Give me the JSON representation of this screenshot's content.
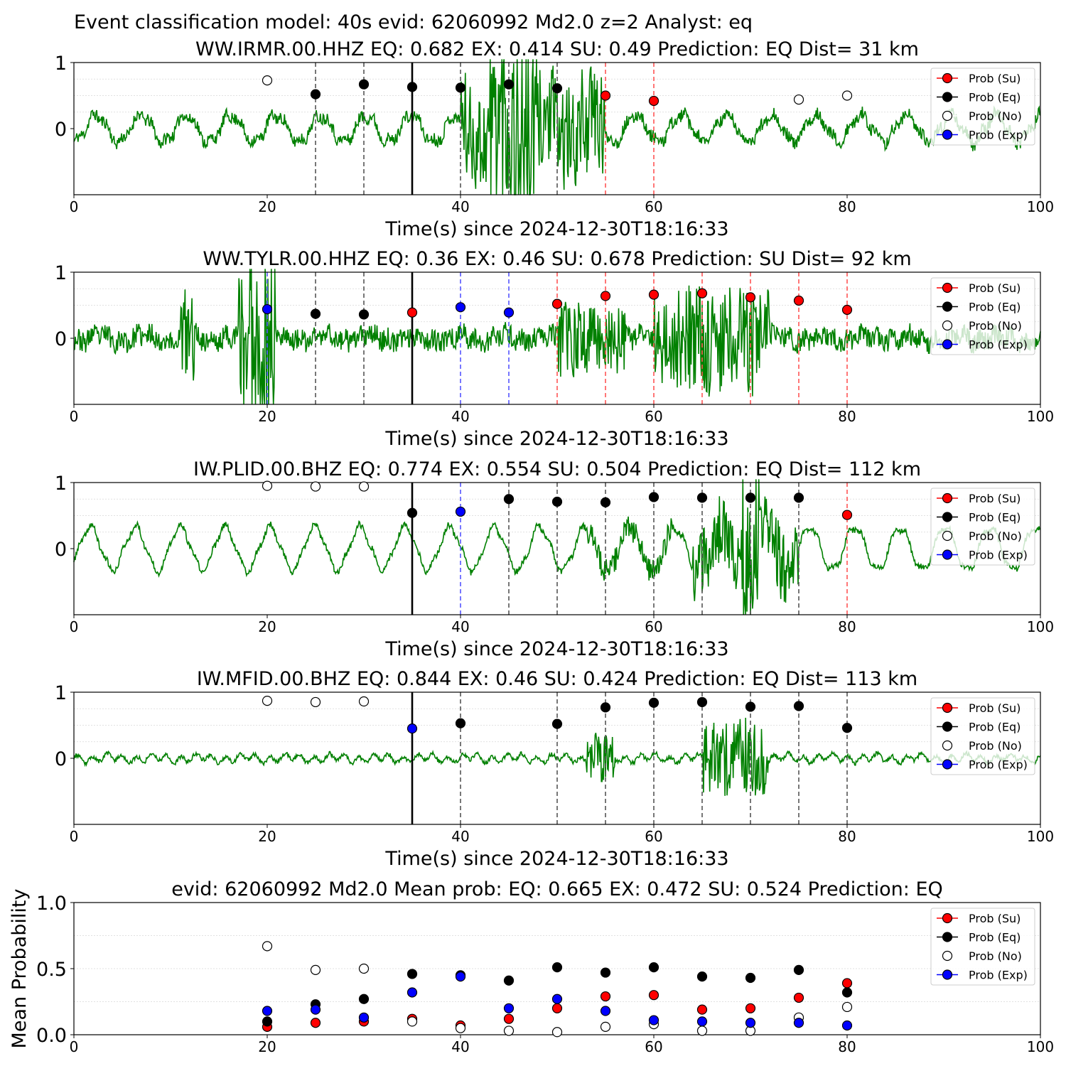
{
  "figure_title": "Event classification model: 40s evid: 62060992 Md2.0 z=2 Analyst: eq",
  "xlabel": "Time(s) since 2024-12-30T18:16:33",
  "colors": {
    "waveform": "#008000",
    "su": "#ff0000",
    "eq": "#000000",
    "exp": "#0000ff",
    "no": "#ffffff"
  },
  "legend": [
    "Prob (Su)",
    "Prob (Eq)",
    "Prob (No)",
    "Prob (Exp)"
  ],
  "chart_data": [
    {
      "type": "scatter",
      "title": "WW.IRMR.00.HHZ   EQ: 0.682  EX: 0.414  SU: 0.49   Prediction: EQ    Dist= 31 km",
      "xlim": [
        0,
        100
      ],
      "xticks": [
        "0",
        "20",
        "40",
        "60",
        "80",
        "100"
      ],
      "yticks": [
        "0",
        "1"
      ],
      "origin_line": 35,
      "waveform_seed": 11,
      "points": [
        {
          "x": 20,
          "y": 0.73,
          "cls": "no"
        },
        {
          "x": 25,
          "y": 0.52,
          "cls": "eq"
        },
        {
          "x": 30,
          "y": 0.67,
          "cls": "eq"
        },
        {
          "x": 35,
          "y": 0.63,
          "cls": "eq"
        },
        {
          "x": 40,
          "y": 0.62,
          "cls": "eq"
        },
        {
          "x": 45,
          "y": 0.67,
          "cls": "eq"
        },
        {
          "x": 50,
          "y": 0.61,
          "cls": "eq"
        },
        {
          "x": 55,
          "y": 0.5,
          "cls": "su"
        },
        {
          "x": 60,
          "y": 0.42,
          "cls": "su"
        },
        {
          "x": 75,
          "y": 0.44,
          "cls": "no"
        },
        {
          "x": 80,
          "y": 0.5,
          "cls": "no"
        }
      ]
    },
    {
      "type": "scatter",
      "title": "WW.TYLR.00.HHZ   EQ: 0.36  EX: 0.46  SU: 0.678   Prediction: SU    Dist= 92 km",
      "xlim": [
        0,
        100
      ],
      "xticks": [
        "0",
        "20",
        "40",
        "60",
        "80",
        "100"
      ],
      "yticks": [
        "0",
        "1"
      ],
      "origin_line": 35,
      "waveform_seed": 23,
      "points": [
        {
          "x": 20,
          "y": 0.44,
          "cls": "exp"
        },
        {
          "x": 25,
          "y": 0.37,
          "cls": "eq"
        },
        {
          "x": 30,
          "y": 0.36,
          "cls": "eq"
        },
        {
          "x": 35,
          "y": 0.39,
          "cls": "su"
        },
        {
          "x": 40,
          "y": 0.47,
          "cls": "exp"
        },
        {
          "x": 45,
          "y": 0.39,
          "cls": "exp"
        },
        {
          "x": 50,
          "y": 0.52,
          "cls": "su"
        },
        {
          "x": 55,
          "y": 0.64,
          "cls": "su"
        },
        {
          "x": 60,
          "y": 0.66,
          "cls": "su"
        },
        {
          "x": 65,
          "y": 0.68,
          "cls": "su"
        },
        {
          "x": 70,
          "y": 0.62,
          "cls": "su"
        },
        {
          "x": 75,
          "y": 0.57,
          "cls": "su"
        },
        {
          "x": 80,
          "y": 0.43,
          "cls": "su"
        }
      ]
    },
    {
      "type": "scatter",
      "title": "IW.PLID.00.BHZ   EQ: 0.774  EX: 0.554  SU: 0.504   Prediction: EQ    Dist= 112 km",
      "xlim": [
        0,
        100
      ],
      "xticks": [
        "0",
        "20",
        "40",
        "60",
        "80",
        "100"
      ],
      "yticks": [
        "0",
        "1"
      ],
      "origin_line": 35,
      "waveform_seed": 37,
      "points": [
        {
          "x": 20,
          "y": 0.95,
          "cls": "no"
        },
        {
          "x": 25,
          "y": 0.94,
          "cls": "no"
        },
        {
          "x": 30,
          "y": 0.94,
          "cls": "no"
        },
        {
          "x": 35,
          "y": 0.54,
          "cls": "eq"
        },
        {
          "x": 40,
          "y": 0.56,
          "cls": "exp"
        },
        {
          "x": 45,
          "y": 0.75,
          "cls": "eq"
        },
        {
          "x": 50,
          "y": 0.71,
          "cls": "eq"
        },
        {
          "x": 55,
          "y": 0.7,
          "cls": "eq"
        },
        {
          "x": 60,
          "y": 0.78,
          "cls": "eq"
        },
        {
          "x": 65,
          "y": 0.77,
          "cls": "eq"
        },
        {
          "x": 70,
          "y": 0.77,
          "cls": "eq"
        },
        {
          "x": 75,
          "y": 0.77,
          "cls": "eq"
        },
        {
          "x": 80,
          "y": 0.51,
          "cls": "su"
        }
      ]
    },
    {
      "type": "scatter",
      "title": "IW.MFID.00.BHZ   EQ: 0.844  EX: 0.46  SU: 0.424   Prediction: EQ    Dist= 113 km",
      "xlim": [
        0,
        100
      ],
      "xticks": [
        "0",
        "20",
        "40",
        "60",
        "80",
        "100"
      ],
      "yticks": [
        "0",
        "1"
      ],
      "origin_line": 35,
      "waveform_seed": 53,
      "points": [
        {
          "x": 20,
          "y": 0.87,
          "cls": "no"
        },
        {
          "x": 25,
          "y": 0.85,
          "cls": "no"
        },
        {
          "x": 30,
          "y": 0.86,
          "cls": "no"
        },
        {
          "x": 35,
          "y": 0.45,
          "cls": "exp"
        },
        {
          "x": 40,
          "y": 0.53,
          "cls": "eq"
        },
        {
          "x": 50,
          "y": 0.52,
          "cls": "eq"
        },
        {
          "x": 55,
          "y": 0.77,
          "cls": "eq"
        },
        {
          "x": 60,
          "y": 0.84,
          "cls": "eq"
        },
        {
          "x": 65,
          "y": 0.85,
          "cls": "eq"
        },
        {
          "x": 70,
          "y": 0.78,
          "cls": "eq"
        },
        {
          "x": 75,
          "y": 0.79,
          "cls": "eq"
        },
        {
          "x": 80,
          "y": 0.46,
          "cls": "eq"
        }
      ]
    },
    {
      "type": "scatter",
      "title": "evid: 62060992  Md2.0   Mean prob:   EQ: 0.665  EX: 0.472  SU: 0.524   Prediction: EQ",
      "ylabel": "Mean Probability",
      "xlim": [
        0,
        100
      ],
      "ylim": [
        0,
        1
      ],
      "xticks": [
        "0",
        "20",
        "40",
        "60",
        "80",
        "100"
      ],
      "yticks": [
        "0.0",
        "0.5",
        "1.0"
      ],
      "x": [
        20,
        25,
        30,
        35,
        40,
        45,
        50,
        55,
        60,
        65,
        70,
        75,
        80
      ],
      "series": [
        {
          "name": "Prob (Su)",
          "cls": "su",
          "values": [
            0.06,
            0.09,
            0.1,
            0.12,
            0.07,
            0.12,
            0.2,
            0.29,
            0.3,
            0.19,
            0.2,
            0.28,
            0.39
          ]
        },
        {
          "name": "Prob (Eq)",
          "cls": "eq",
          "values": [
            0.1,
            0.23,
            0.27,
            0.46,
            0.45,
            0.41,
            0.51,
            0.47,
            0.51,
            0.44,
            0.43,
            0.49,
            0.32
          ]
        },
        {
          "name": "Prob (No)",
          "cls": "no",
          "values": [
            0.67,
            0.49,
            0.5,
            0.1,
            0.05,
            0.03,
            0.02,
            0.06,
            0.08,
            0.03,
            0.03,
            0.13,
            0.21
          ]
        },
        {
          "name": "Prob (Exp)",
          "cls": "exp",
          "values": [
            0.18,
            0.19,
            0.13,
            0.32,
            0.44,
            0.2,
            0.27,
            0.18,
            0.11,
            0.1,
            0.09,
            0.09,
            0.07
          ]
        }
      ]
    }
  ]
}
